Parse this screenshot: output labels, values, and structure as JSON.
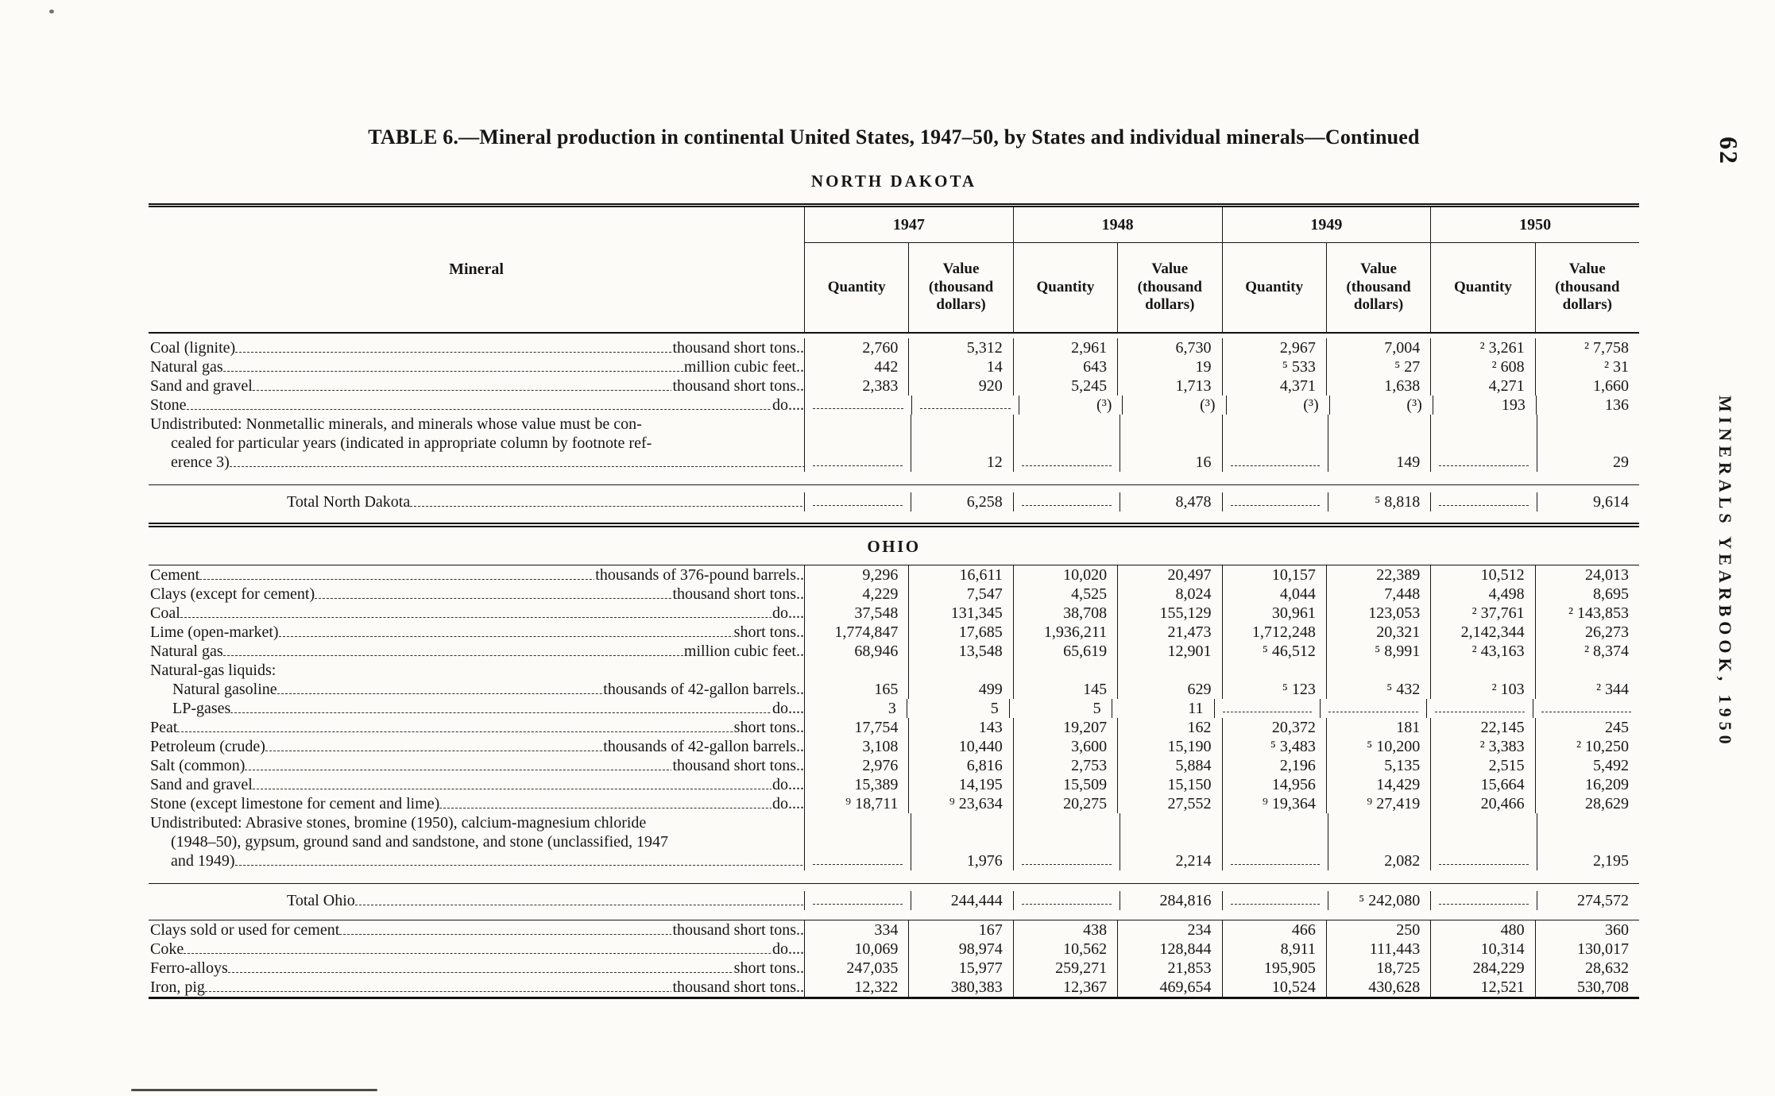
{
  "page": {
    "number": "62",
    "running_title": "MINERALS YEARBOOK, 1950",
    "title": "TABLE 6.—Mineral production in continental United States, 1947–50, by States and individual minerals—Continued",
    "state_heading": "NORTH DAKOTA"
  },
  "table": {
    "header": {
      "mineral": "Mineral",
      "years": [
        "1947",
        "1948",
        "1949",
        "1950"
      ],
      "quantity": "Quantity",
      "value": "Value (thousand dollars)"
    },
    "rows": [
      {
        "t": "d",
        "label": "Coal (lignite)",
        "unit": "thousand short tons..",
        "cells": [
          "2,760",
          "5,312",
          "2,961",
          "6,730",
          "2,967",
          "7,004",
          "² 3,261",
          "² 7,758"
        ]
      },
      {
        "t": "d",
        "label": "Natural gas",
        "unit": "million cubic feet..",
        "cells": [
          "442",
          "14",
          "643",
          "19",
          "⁵ 533",
          "⁵ 27",
          "² 608",
          "² 31"
        ]
      },
      {
        "t": "d",
        "label": "Sand and gravel",
        "unit": "thousand short tons..",
        "cells": [
          "2,383",
          "920",
          "5,245",
          "1,713",
          "4,371",
          "1,638",
          "4,271",
          "1,660"
        ]
      },
      {
        "t": "d",
        "label": "Stone",
        "unit": "do....",
        "cells": [
          "-",
          "-",
          "(³)",
          "(³)",
          "(³)",
          "(³)",
          "193",
          "136"
        ]
      },
      {
        "t": "und",
        "label": "Undistributed: Nonmetallic minerals, and minerals whose value must be con-\ncealed for particular years (indicated in appropriate column by footnote ref-\nerence 3)",
        "cells": [
          "-",
          "12",
          "-",
          "16",
          "-",
          "149",
          "-",
          "29"
        ]
      },
      {
        "t": "rule"
      },
      {
        "t": "tot",
        "label": "Total North Dakota",
        "cells": [
          "-",
          "6,258",
          "-",
          "8,478",
          "-",
          "⁵ 8,818",
          "-",
          "9,614"
        ]
      },
      {
        "t": "band",
        "label": "OHIO"
      },
      {
        "t": "d",
        "label": "Cement",
        "unit": "thousands of 376-pound barrels..",
        "cells": [
          "9,296",
          "16,611",
          "10,020",
          "20,497",
          "10,157",
          "22,389",
          "10,512",
          "24,013"
        ]
      },
      {
        "t": "d",
        "label": "Clays (except for cement)",
        "unit": "thousand short tons..",
        "cells": [
          "4,229",
          "7,547",
          "4,525",
          "8,024",
          "4,044",
          "7,448",
          "4,498",
          "8,695"
        ]
      },
      {
        "t": "d",
        "label": "Coal",
        "unit": "do....",
        "cells": [
          "37,548",
          "131,345",
          "38,708",
          "155,129",
          "30,961",
          "123,053",
          "² 37,761",
          "² 143,853"
        ]
      },
      {
        "t": "d",
        "label": "Lime (open-market)",
        "unit": "short tons..",
        "cells": [
          "1,774,847",
          "17,685",
          "1,936,211",
          "21,473",
          "1,712,248",
          "20,321",
          "2,142,344",
          "26,273"
        ]
      },
      {
        "t": "d",
        "label": "Natural gas",
        "unit": "million cubic feet..",
        "cells": [
          "68,946",
          "13,548",
          "65,619",
          "12,901",
          "⁵ 46,512",
          "⁵ 8,991",
          "² 43,163",
          "² 8,374"
        ]
      },
      {
        "t": "sub",
        "label": "Natural-gas liquids:"
      },
      {
        "t": "d",
        "indent": 1,
        "label": "Natural gasoline",
        "unit": "thousands of 42-gallon barrels..",
        "cells": [
          "165",
          "499",
          "145",
          "629",
          "⁵ 123",
          "⁵ 432",
          "² 103",
          "² 344"
        ]
      },
      {
        "t": "d",
        "indent": 1,
        "label": "LP-gases",
        "unit": "do....",
        "cells": [
          "3",
          "5",
          "5",
          "11",
          "-",
          "-",
          "-",
          "-"
        ]
      },
      {
        "t": "d",
        "label": "Peat",
        "unit": "short tons..",
        "cells": [
          "17,754",
          "143",
          "19,207",
          "162",
          "20,372",
          "181",
          "22,145",
          "245"
        ]
      },
      {
        "t": "d",
        "label": "Petroleum (crude)",
        "unit": "thousands of 42-gallon barrels..",
        "cells": [
          "3,108",
          "10,440",
          "3,600",
          "15,190",
          "⁵ 3,483",
          "⁵ 10,200",
          "² 3,383",
          "² 10,250"
        ]
      },
      {
        "t": "d",
        "label": "Salt (common)",
        "unit": "thousand short tons..",
        "cells": [
          "2,976",
          "6,816",
          "2,753",
          "5,884",
          "2,196",
          "5,135",
          "2,515",
          "5,492"
        ]
      },
      {
        "t": "d",
        "label": "Sand and gravel",
        "unit": "do....",
        "cells": [
          "15,389",
          "14,195",
          "15,509",
          "15,150",
          "14,956",
          "14,429",
          "15,664",
          "16,209"
        ]
      },
      {
        "t": "d",
        "label": "Stone (except limestone for cement and lime)",
        "unit": "do....",
        "cells": [
          "⁹ 18,711",
          "⁹ 23,634",
          "20,275",
          "27,552",
          "⁹ 19,364",
          "⁹ 27,419",
          "20,466",
          "28,629"
        ]
      },
      {
        "t": "und",
        "label": "Undistributed: Abrasive stones, bromine (1950), calcium-magnesium chloride\n(1948–50), gypsum, ground sand and sandstone, and stone (unclassified, 1947\nand 1949)",
        "cells": [
          "-",
          "1,976",
          "-",
          "2,214",
          "-",
          "2,082",
          "-",
          "2,195"
        ]
      },
      {
        "t": "rule"
      },
      {
        "t": "tot",
        "label": "Total Ohio",
        "cells": [
          "-",
          "244,444",
          "-",
          "284,816",
          "-",
          "⁵ 242,080",
          "-",
          "274,572"
        ]
      },
      {
        "t": "rule"
      },
      {
        "t": "d",
        "label": "Clays sold or used for cement",
        "unit": "thousand short tons..",
        "cells": [
          "334",
          "167",
          "438",
          "234",
          "466",
          "250",
          "480",
          "360"
        ]
      },
      {
        "t": "d",
        "label": "Coke",
        "unit": "do....",
        "cells": [
          "10,069",
          "98,974",
          "10,562",
          "128,844",
          "8,911",
          "111,443",
          "10,314",
          "130,017"
        ]
      },
      {
        "t": "d",
        "label": "Ferro-alloys",
        "unit": "short tons..",
        "cells": [
          "247,035",
          "15,977",
          "259,271",
          "21,853",
          "195,905",
          "18,725",
          "284,229",
          "28,632"
        ]
      },
      {
        "t": "d",
        "label": "Iron, pig",
        "unit": "thousand short tons..",
        "cells": [
          "12,322",
          "380,383",
          "12,367",
          "469,654",
          "10,524",
          "430,628",
          "12,521",
          "530,708"
        ]
      }
    ]
  }
}
